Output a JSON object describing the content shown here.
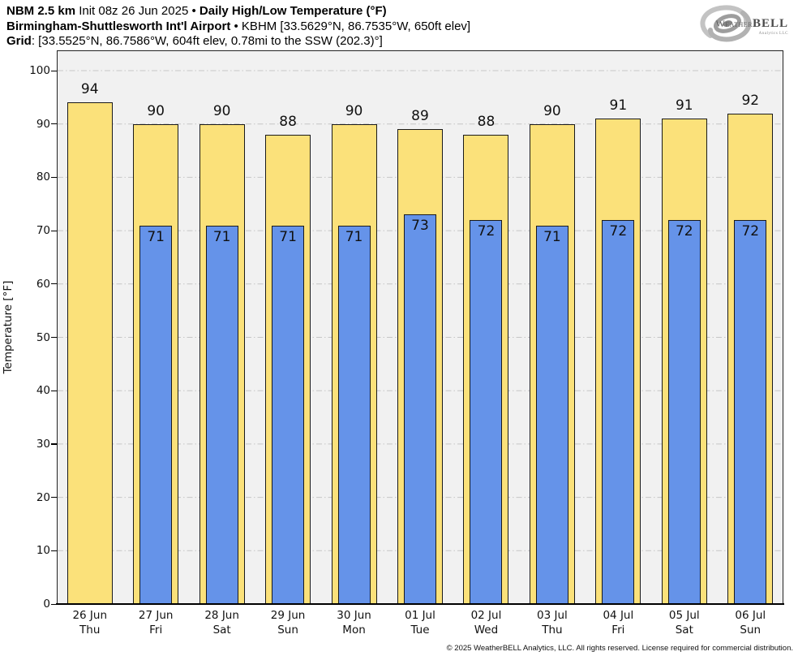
{
  "header": {
    "line1_bold1": "NBM 2.5 km",
    "line1_normal": " Init 08z 26 Jun 2025 • ",
    "line1_bold2": "Daily High/Low Temperature (°F)",
    "line2_bold": "Birmingham-Shuttlesworth Int'l Airport",
    "line2_normal": " • KBHM [33.5629°N, 86.7535°W, 650ft elev]",
    "line3_bold": "Grid",
    "line3_normal": ": [33.5525°N, 86.7586°W, 604ft elev, 0.78mi to the SSW (202.3)°]"
  },
  "logo": {
    "icon": "hurricane-swirl",
    "brand_weather": "Weather",
    "brand_bell": "BELL",
    "brand_sub": "Analytics LLC"
  },
  "footer": {
    "copyright": "© 2025 WeatherBELL Analytics, LLC. All rights reserved. License required for commercial distribution."
  },
  "chart_data": {
    "type": "bar",
    "title": "Daily High/Low Temperature (°F)",
    "subtitle": "NBM 2.5 km Init 08z 26 Jun 2025 — Birmingham-Shuttlesworth Int'l Airport (KBHM)",
    "xlabel": "",
    "ylabel": "Temperature [°F]",
    "ylim": [
      0,
      100
    ],
    "yticks": [
      0,
      10,
      20,
      30,
      40,
      50,
      60,
      70,
      80,
      90,
      100
    ],
    "grid": "horizontal dash-dot",
    "legend_position": "none",
    "categories": [
      {
        "date": "26 Jun",
        "day": "Thu"
      },
      {
        "date": "27 Jun",
        "day": "Fri"
      },
      {
        "date": "28 Jun",
        "day": "Sat"
      },
      {
        "date": "29 Jun",
        "day": "Sun"
      },
      {
        "date": "30 Jun",
        "day": "Mon"
      },
      {
        "date": "01 Jul",
        "day": "Tue"
      },
      {
        "date": "02 Jul",
        "day": "Wed"
      },
      {
        "date": "03 Jul",
        "day": "Thu"
      },
      {
        "date": "04 Jul",
        "day": "Fri"
      },
      {
        "date": "05 Jul",
        "day": "Sat"
      },
      {
        "date": "06 Jul",
        "day": "Sun"
      }
    ],
    "series": [
      {
        "name": "Daily High",
        "color": "#fbe17a",
        "values": [
          94,
          90,
          90,
          88,
          90,
          89,
          88,
          90,
          91,
          91,
          92
        ]
      },
      {
        "name": "Daily Low",
        "color": "#6593e9",
        "values": [
          null,
          71,
          71,
          71,
          71,
          73,
          72,
          71,
          72,
          72,
          72
        ]
      }
    ],
    "colors": {
      "high_bar": "#fbe17a",
      "low_bar": "#6593e9",
      "bar_border": "#1a1a1a",
      "plot_background": "#f1f1f1",
      "gridline": "#c6c6c6",
      "axis": "#000000",
      "text": "#111111"
    }
  }
}
